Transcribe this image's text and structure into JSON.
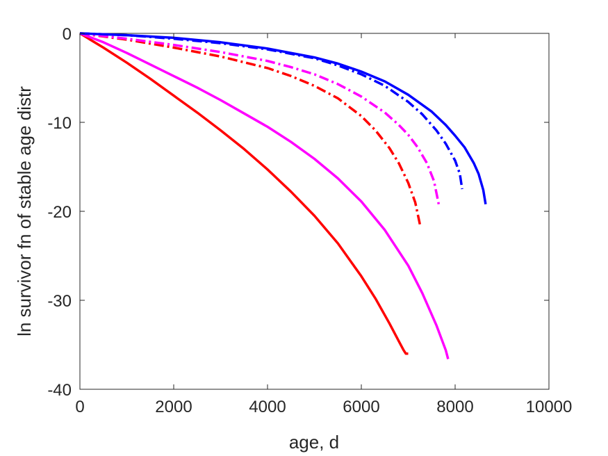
{
  "chart_data": {
    "type": "line",
    "title": "",
    "xlabel": "age, d",
    "ylabel": "ln survivor fn of stable age distr",
    "xlim": [
      0,
      10000
    ],
    "ylim": [
      -40,
      0
    ],
    "xticks": [
      0,
      2000,
      4000,
      6000,
      8000,
      10000
    ],
    "yticks": [
      -40,
      -30,
      -20,
      -10,
      0
    ],
    "xtick_labels": [
      "0",
      "2000",
      "4000",
      "6000",
      "8000",
      "10000"
    ],
    "ytick_labels": [
      "-40",
      "-30",
      "-20",
      "-10",
      "0"
    ],
    "grid": false,
    "legend": "none",
    "series": [
      {
        "color": "#ff0000",
        "style": "solid",
        "x": [
          0,
          500,
          1000,
          1500,
          2000,
          2500,
          3000,
          3500,
          4000,
          4500,
          5000,
          5500,
          6000,
          6300,
          6600,
          6800,
          6900,
          6950,
          7000
        ],
        "y": [
          0,
          -1.6,
          -3.3,
          -5.1,
          -7.0,
          -8.9,
          -10.9,
          -13.0,
          -15.3,
          -17.8,
          -20.5,
          -23.6,
          -27.3,
          -29.8,
          -32.6,
          -34.6,
          -35.6,
          -36.0,
          -36.0
        ]
      },
      {
        "color": "#ff00ff",
        "style": "solid",
        "x": [
          0,
          500,
          1000,
          1500,
          2000,
          2500,
          3000,
          3500,
          4000,
          4500,
          5000,
          5500,
          6000,
          6500,
          7000,
          7300,
          7600,
          7800,
          7850
        ],
        "y": [
          0,
          -1.0,
          -2.2,
          -3.5,
          -4.8,
          -6.1,
          -7.5,
          -9.0,
          -10.5,
          -12.2,
          -14.1,
          -16.3,
          -18.9,
          -22.1,
          -26.1,
          -29.2,
          -32.8,
          -35.6,
          -36.6
        ]
      },
      {
        "color": "#0000ff",
        "style": "solid",
        "x": [
          0,
          1000,
          2000,
          3000,
          4000,
          5000,
          5500,
          6000,
          6500,
          7000,
          7500,
          7800,
          8000,
          8200,
          8400,
          8500,
          8600,
          8650
        ],
        "y": [
          0,
          -0.2,
          -0.5,
          -1.0,
          -1.7,
          -2.7,
          -3.4,
          -4.3,
          -5.4,
          -6.9,
          -8.8,
          -10.3,
          -11.5,
          -12.8,
          -14.6,
          -15.8,
          -17.6,
          -19.2
        ]
      },
      {
        "color": "#ff0000",
        "style": "dashdot",
        "x": [
          0,
          1000,
          2000,
          3000,
          4000,
          4500,
          5000,
          5500,
          6000,
          6300,
          6600,
          6800,
          7000,
          7150,
          7250
        ],
        "y": [
          0,
          -0.7,
          -1.6,
          -2.6,
          -3.9,
          -4.8,
          -5.9,
          -7.3,
          -9.3,
          -10.9,
          -12.9,
          -14.6,
          -16.8,
          -19.0,
          -21.5
        ]
      },
      {
        "color": "#ff00ff",
        "style": "dashdot",
        "x": [
          0,
          1000,
          2000,
          3000,
          4000,
          4500,
          5000,
          5500,
          6000,
          6500,
          6800,
          7000,
          7200,
          7400,
          7550,
          7650
        ],
        "y": [
          0,
          -0.6,
          -1.3,
          -2.1,
          -3.1,
          -3.8,
          -4.6,
          -5.7,
          -7.1,
          -8.9,
          -10.3,
          -11.4,
          -12.8,
          -14.6,
          -16.6,
          -19.2
        ]
      },
      {
        "color": "#0000ff",
        "style": "dashdot",
        "x": [
          0,
          1000,
          2000,
          3000,
          4000,
          5000,
          5500,
          6000,
          6500,
          7000,
          7300,
          7600,
          7800,
          8000,
          8100,
          8150
        ],
        "y": [
          0,
          -0.2,
          -0.6,
          -1.1,
          -1.8,
          -2.8,
          -3.6,
          -4.6,
          -5.9,
          -7.7,
          -9.1,
          -10.9,
          -12.4,
          -14.3,
          -15.8,
          -17.5
        ]
      }
    ]
  }
}
